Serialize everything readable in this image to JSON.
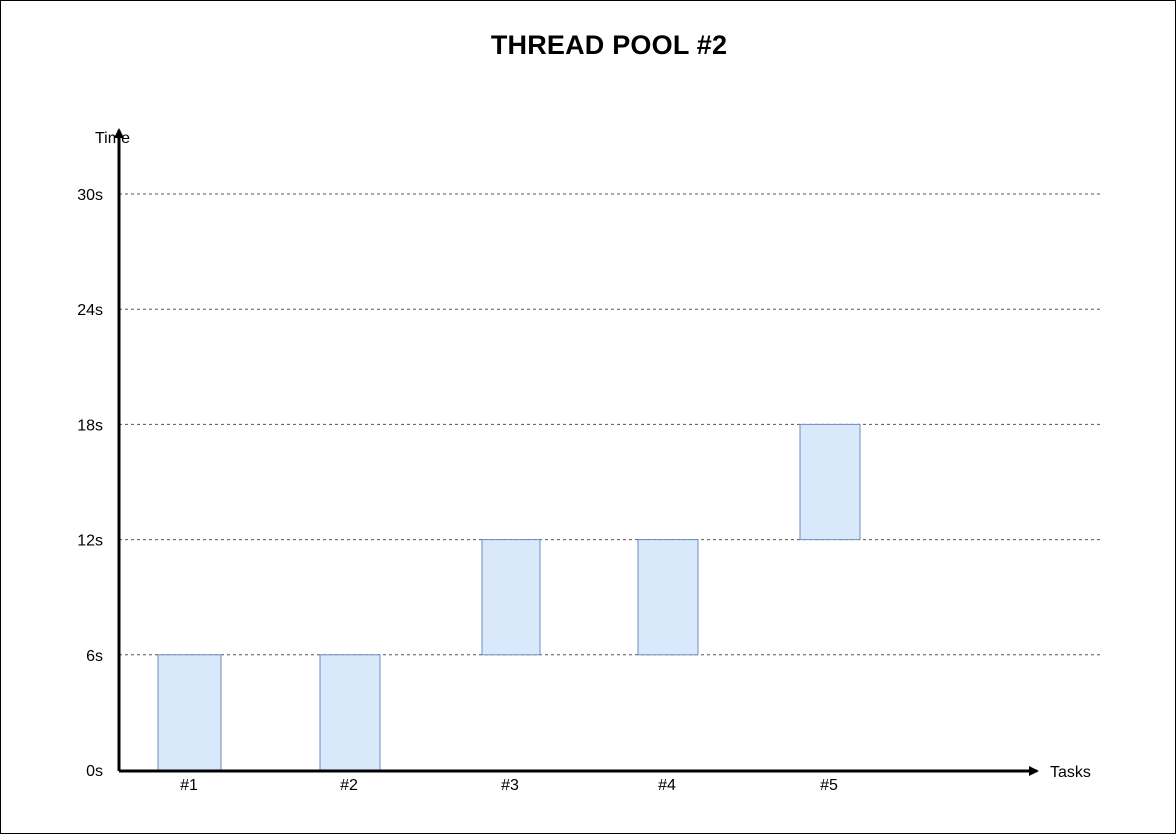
{
  "chart_data": {
    "type": "bar",
    "title": "THREAD POOL #2",
    "xlabel": "Tasks",
    "ylabel": "Time",
    "ylim": [
      0,
      30
    ],
    "yticks": [
      {
        "value": 0,
        "label": "0s"
      },
      {
        "value": 6,
        "label": "6s"
      },
      {
        "value": 12,
        "label": "12s"
      },
      {
        "value": 18,
        "label": "18s"
      },
      {
        "value": 24,
        "label": "24s"
      },
      {
        "value": 30,
        "label": "30s"
      }
    ],
    "grid": true,
    "categories": [
      "#1",
      "#2",
      "#3",
      "#4",
      "#5"
    ],
    "bars": [
      {
        "task": "#1",
        "start": 0,
        "end": 6
      },
      {
        "task": "#2",
        "start": 0,
        "end": 6
      },
      {
        "task": "#3",
        "start": 6,
        "end": 12
      },
      {
        "task": "#4",
        "start": 6,
        "end": 12
      },
      {
        "task": "#5",
        "start": 12,
        "end": 18
      }
    ],
    "colors": {
      "bar_fill": "#dae8fc",
      "bar_stroke": "#6c8ebf",
      "axis": "#000000",
      "grid": "#555555"
    }
  }
}
